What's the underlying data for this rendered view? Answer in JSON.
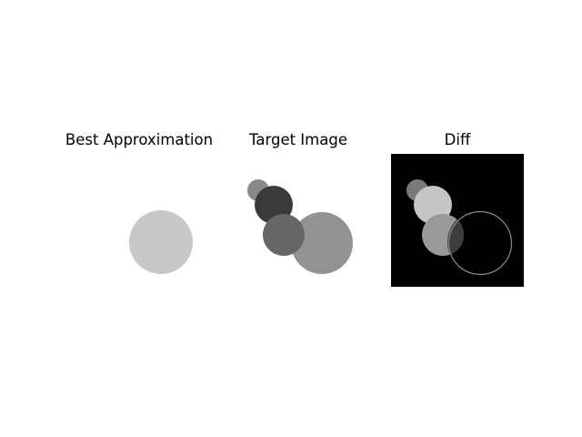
{
  "figure": {
    "panels": [
      {
        "title": "Best Approximation",
        "background": "#ffffff"
      },
      {
        "title": "Target Image",
        "background": "#ffffff"
      },
      {
        "title": "Diff",
        "background": "#000000"
      }
    ],
    "colors": {
      "best_circle": "#c8c8c8",
      "target_small_top": "#8a8a8a",
      "target_dark": "#3a3a3a",
      "target_mid": "#666666",
      "target_large": "#929292",
      "diff_small_top": "#7a7a7a",
      "diff_light": "#c6c6c6",
      "diff_mid": "#9a9a9a",
      "diff_overlap": "#3c3c3c",
      "diff_ring": "#8c8c8c"
    }
  }
}
